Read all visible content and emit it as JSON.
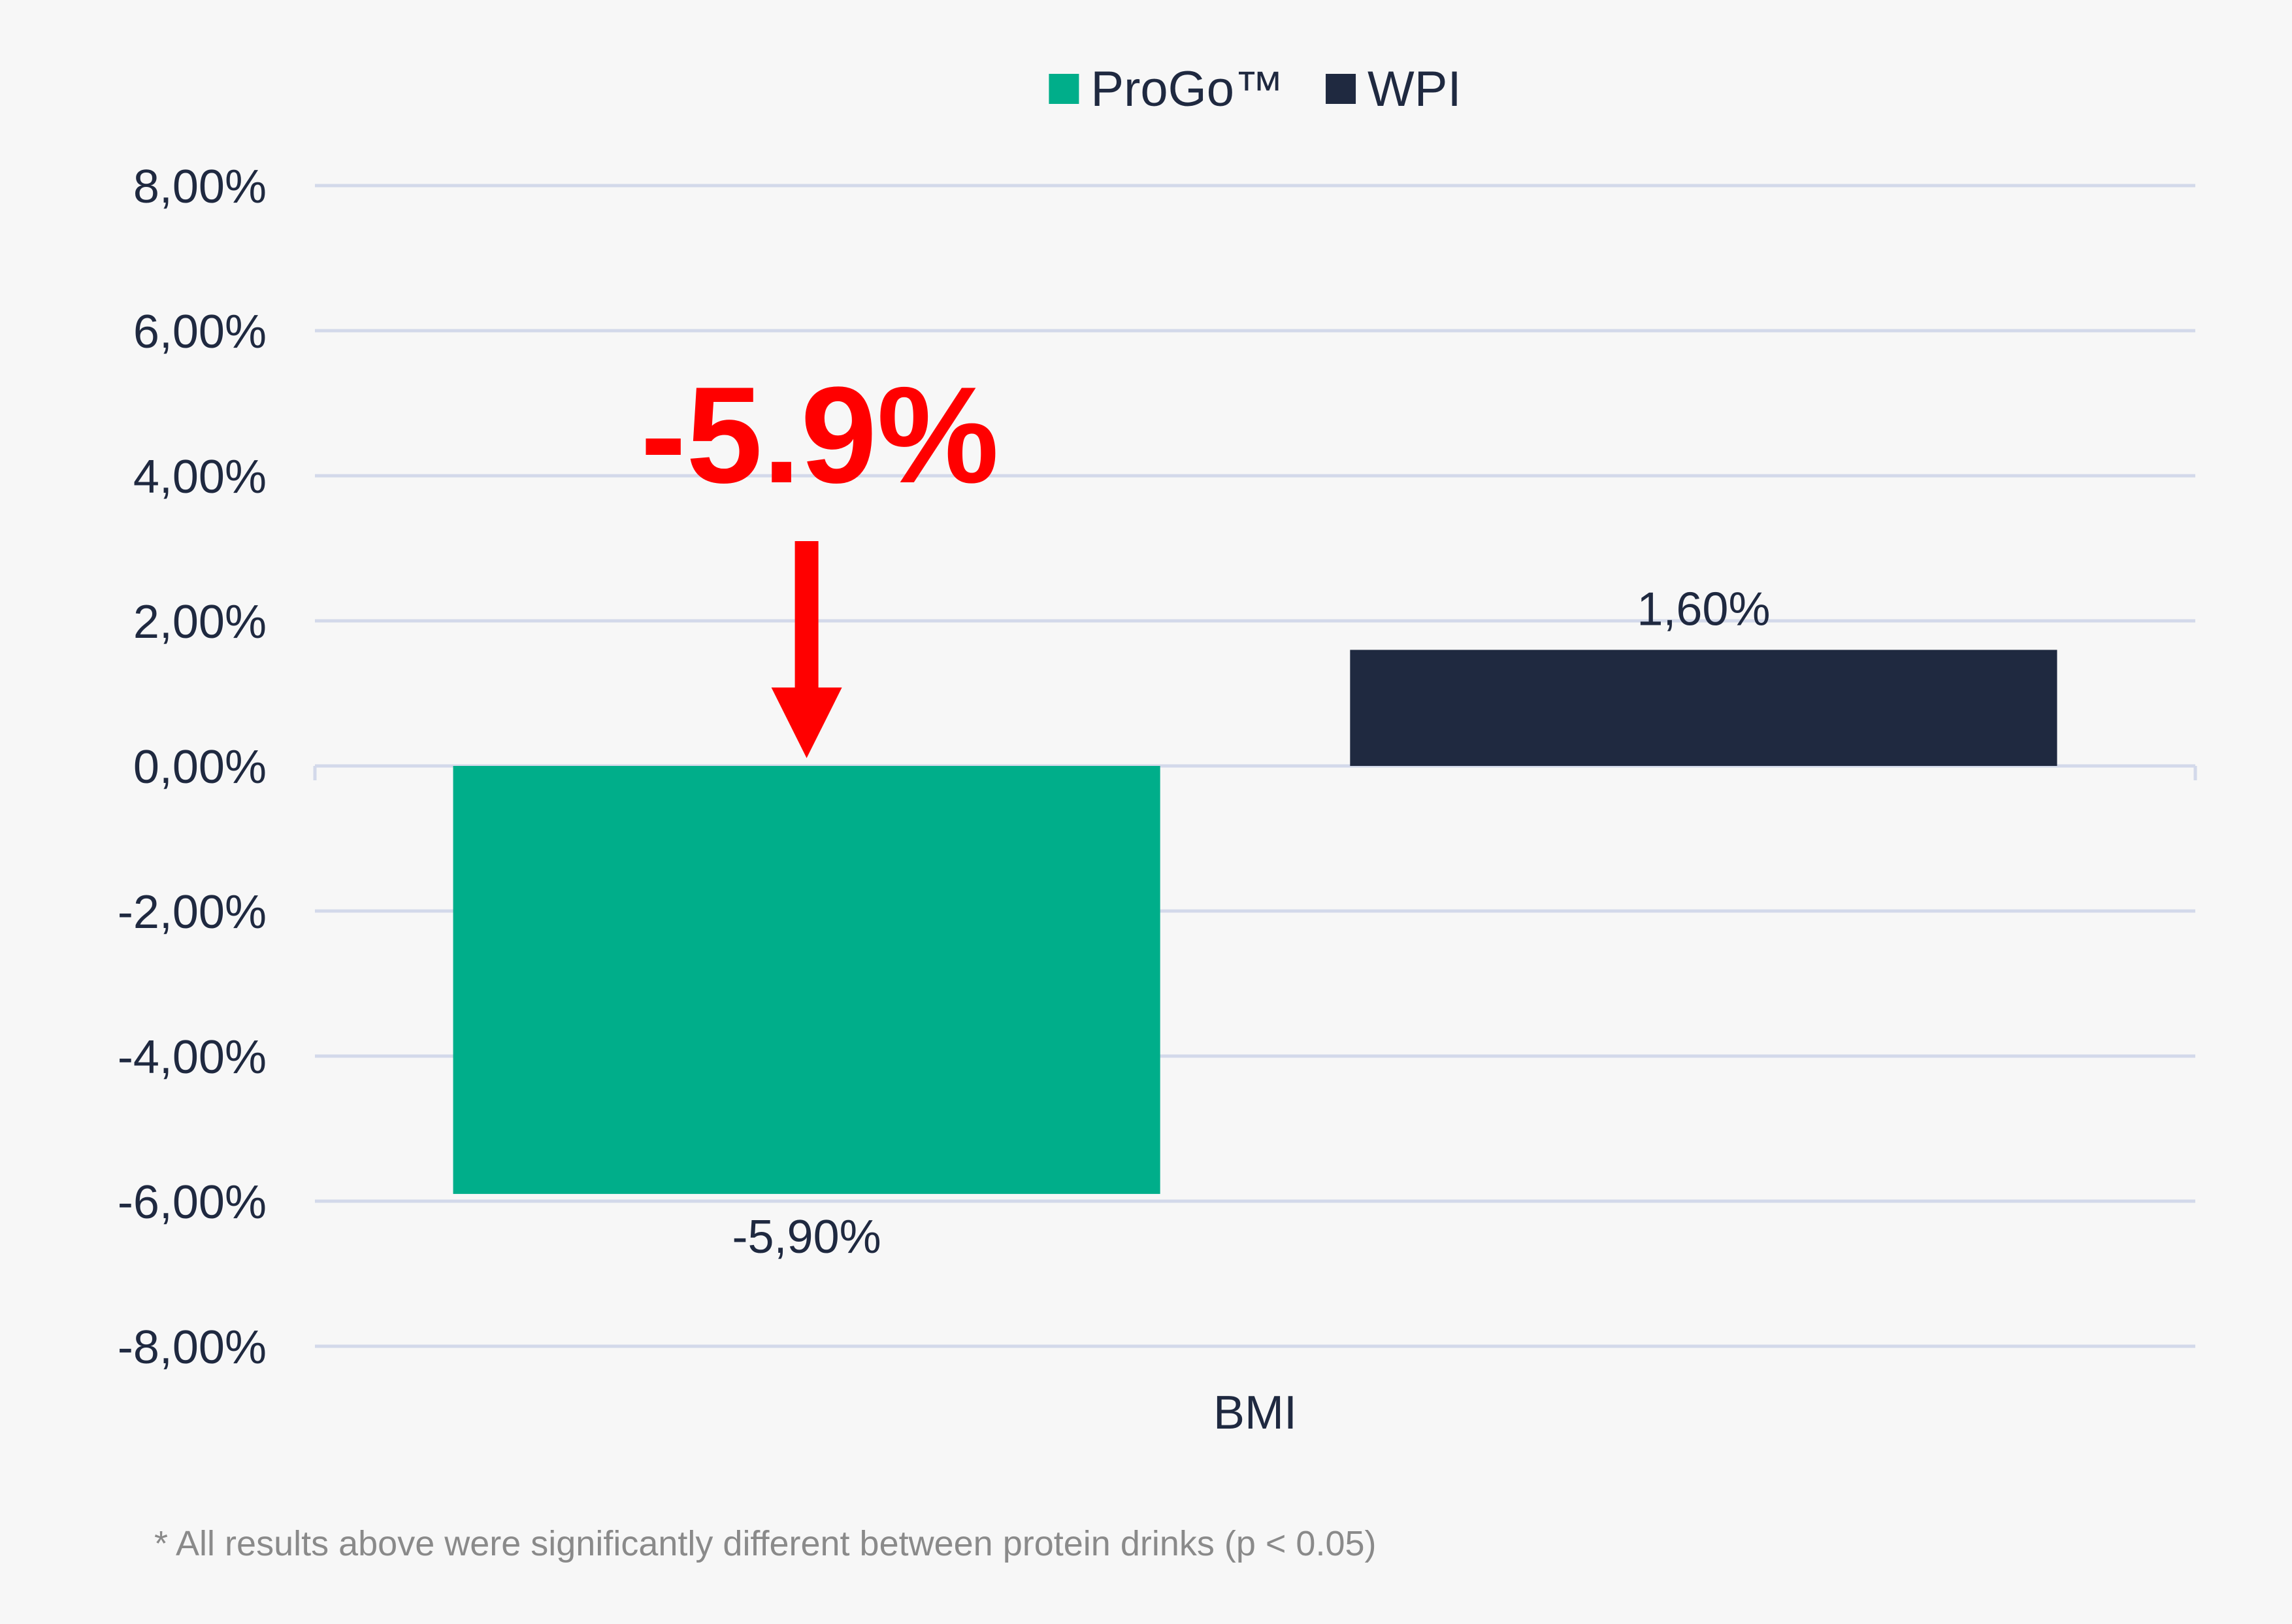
{
  "chart_data": {
    "type": "bar",
    "categories": [
      "BMI"
    ],
    "series": [
      {
        "name": "ProGo™",
        "values": [
          -5.9
        ],
        "label": "-5,90%",
        "color": "#00ae8a"
      },
      {
        "name": "WPI",
        "values": [
          1.6
        ],
        "label": "1,60%",
        "color": "#1f2940"
      }
    ],
    "ylim": [
      -8,
      8
    ],
    "yticks": [
      8,
      6,
      4,
      2,
      0,
      -2,
      -4,
      -6,
      -8
    ],
    "ytick_labels": [
      "8,00%",
      "6,00%",
      "4,00%",
      "2,00%",
      "0,00%",
      "-2,00%",
      "-4,00%",
      "-6,00%",
      "-8,00%"
    ],
    "grid": true,
    "legend": "top-center",
    "annotation": {
      "text": "-5.9%",
      "target_series": 0,
      "color": "#ff0000"
    },
    "footnote": "* All results above were significantly different between protein drinks (p < 0.05)",
    "colors": {
      "grid": "#d3d9ea",
      "text": "#1f2940",
      "footnote": "#8a8a8a",
      "background": "#f7f7f7"
    }
  }
}
